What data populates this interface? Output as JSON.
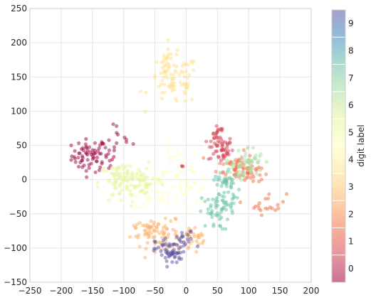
{
  "chart_data": {
    "type": "scatter",
    "xlabel": "",
    "ylabel": "",
    "xlim": [
      -250,
      200
    ],
    "ylim": [
      -150,
      250
    ],
    "x_ticks": [
      "−250",
      "−200",
      "−150",
      "−100",
      "−50",
      "0",
      "50",
      "100",
      "150",
      "200"
    ],
    "y_ticks": [
      "−150",
      "−100",
      "−50",
      "0",
      "50",
      "100",
      "150",
      "200",
      "250"
    ],
    "grid": true,
    "point_alpha": 0.5,
    "colorbar": {
      "label": "digit label",
      "ticks": [
        "0",
        "1",
        "2",
        "3",
        "4",
        "5",
        "6",
        "7",
        "8",
        "9"
      ],
      "colors": [
        "#9e0142",
        "#d53e4f",
        "#f46d43",
        "#fdae61",
        "#fee08b",
        "#ffffbf",
        "#e6f598",
        "#abdda4",
        "#66c2a5",
        "#3288bd",
        "#5e4fa2"
      ]
    },
    "series": [
      {
        "label": "0",
        "color": "#9e0142",
        "centers": [
          [
            -155,
            35
          ],
          [
            -130,
            30
          ],
          [
            -110,
            60
          ]
        ],
        "spread": [
          [
            14,
            12
          ],
          [
            8,
            10
          ],
          [
            12,
            14
          ]
        ],
        "counts": [
          60,
          15,
          12
        ]
      },
      {
        "label": "1",
        "color": "#d53e4f",
        "centers": [
          [
            55,
            45
          ],
          [
            50,
            70
          ],
          [
            -5,
            18
          ]
        ],
        "spread": [
          [
            10,
            10
          ],
          [
            6,
            8
          ],
          [
            2,
            2
          ]
        ],
        "counts": [
          50,
          15,
          3
        ]
      },
      {
        "label": "2",
        "color": "#f46d43",
        "centers": [
          [
            80,
            20
          ],
          [
            100,
            10
          ],
          [
            130,
            -35
          ]
        ],
        "spread": [
          [
            15,
            10
          ],
          [
            10,
            8
          ],
          [
            15,
            8
          ]
        ],
        "counts": [
          45,
          30,
          20
        ]
      },
      {
        "label": "3",
        "color": "#fdae61",
        "centers": [
          [
            -40,
            -80
          ],
          [
            10,
            -90
          ],
          [
            -60,
            -70
          ]
        ],
        "spread": [
          [
            25,
            10
          ],
          [
            15,
            10
          ],
          [
            10,
            8
          ]
        ],
        "counts": [
          70,
          25,
          15
        ]
      },
      {
        "label": "4",
        "color": "#fee08b",
        "centers": [
          [
            -20,
            145
          ],
          [
            -30,
            175
          ]
        ],
        "spread": [
          [
            20,
            18
          ],
          [
            6,
            12
          ]
        ],
        "counts": [
          85,
          10
        ]
      },
      {
        "label": "5",
        "color": "#ffffbf",
        "centers": [
          [
            -40,
            -10
          ],
          [
            0,
            -5
          ],
          [
            -20,
            30
          ]
        ],
        "spread": [
          [
            25,
            15
          ],
          [
            20,
            15
          ],
          [
            10,
            10
          ]
        ],
        "counts": [
          50,
          30,
          10
        ]
      },
      {
        "label": "6",
        "color": "#e6f598",
        "centers": [
          [
            -100,
            -5
          ],
          [
            -70,
            0
          ],
          [
            -110,
            10
          ]
        ],
        "spread": [
          [
            20,
            15
          ],
          [
            15,
            12
          ],
          [
            10,
            8
          ]
        ],
        "counts": [
          70,
          30,
          15
        ]
      },
      {
        "label": "7",
        "color": "#abdda4",
        "centers": [
          [
            100,
            25
          ],
          [
            85,
            15
          ]
        ],
        "spread": [
          [
            12,
            12
          ],
          [
            8,
            8
          ]
        ],
        "counts": [
          50,
          15
        ]
      },
      {
        "label": "8",
        "color": "#66c2a5",
        "centers": [
          [
            60,
            -20
          ],
          [
            45,
            -50
          ],
          [
            60,
            0
          ]
        ],
        "spread": [
          [
            12,
            15
          ],
          [
            12,
            12
          ],
          [
            8,
            8
          ]
        ],
        "counts": [
          40,
          40,
          15
        ]
      },
      {
        "label": "9",
        "color": "#5e4fa2",
        "centers": [
          [
            -25,
            -105
          ],
          [
            0,
            -90
          ]
        ],
        "spread": [
          [
            12,
            10
          ],
          [
            8,
            8
          ]
        ],
        "counts": [
          60,
          15
        ]
      }
    ]
  }
}
